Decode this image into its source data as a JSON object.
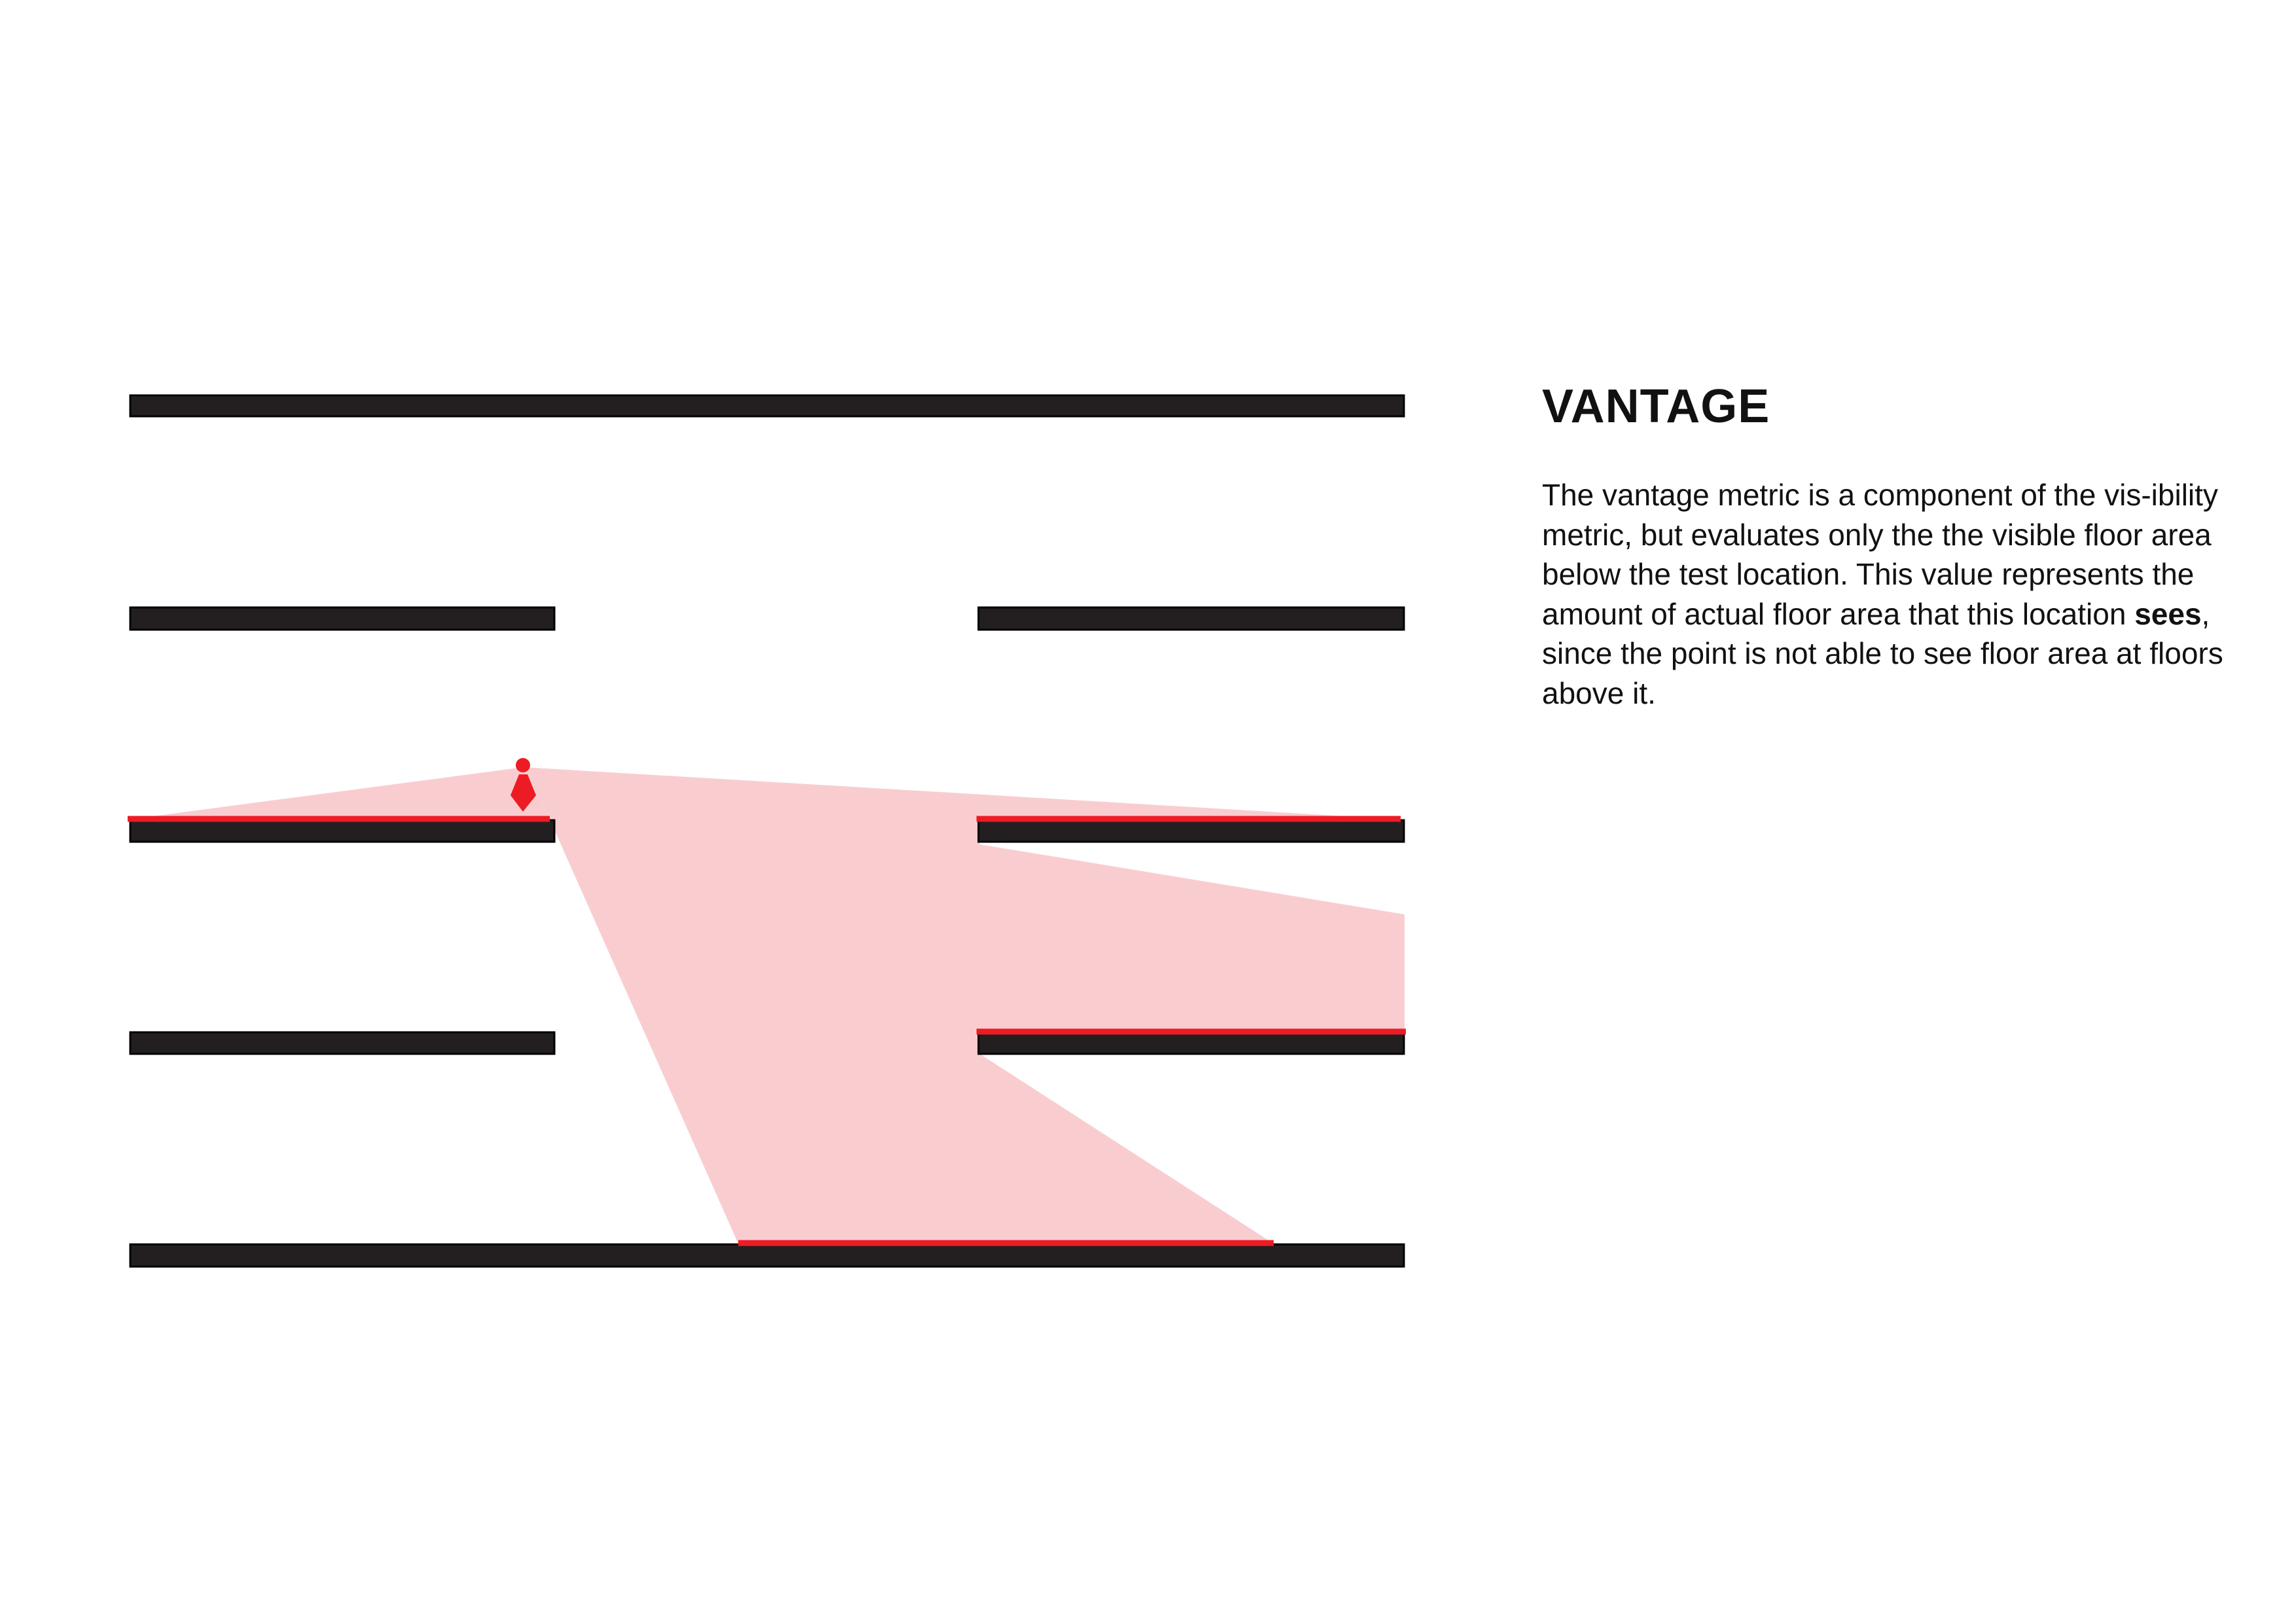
{
  "title": "VANTAGE",
  "description": {
    "before_bold": "The vantage metric is a component of the vis-ibility metric, but evaluates only the the visible floor area below the test location. This value represents the amount of actual floor area that this location ",
    "bold": "sees",
    "after_bold": ", since the point is not able to see floor area at floors above it."
  },
  "colors": {
    "slab": "#231f20",
    "visible_floor": "#ed1c24",
    "view_cone": "#f9cdd0",
    "viewer": "#ed1c24",
    "text": "#111111"
  },
  "icons": [
    "person-icon"
  ]
}
